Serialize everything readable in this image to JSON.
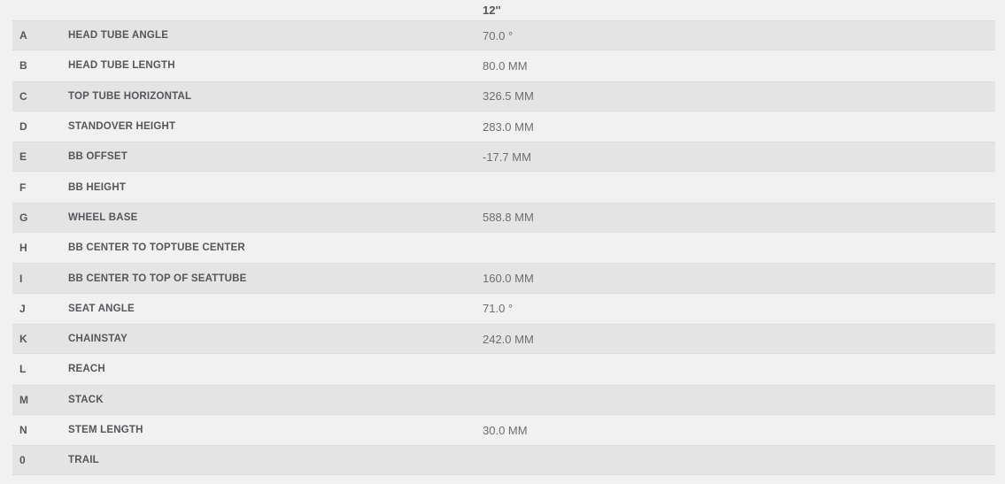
{
  "table": {
    "size_header": "12''",
    "rows": [
      {
        "letter": "A",
        "label": "HEAD TUBE ANGLE",
        "value": "70.0 °"
      },
      {
        "letter": "B",
        "label": "HEAD TUBE LENGTH",
        "value": "80.0 MM"
      },
      {
        "letter": "C",
        "label": "TOP TUBE HORIZONTAL",
        "value": "326.5 MM"
      },
      {
        "letter": "D",
        "label": "STANDOVER HEIGHT",
        "value": "283.0 MM"
      },
      {
        "letter": "E",
        "label": "BB OFFSET",
        "value": "-17.7 MM"
      },
      {
        "letter": "F",
        "label": "BB HEIGHT",
        "value": ""
      },
      {
        "letter": "G",
        "label": "WHEEL BASE",
        "value": "588.8 MM"
      },
      {
        "letter": "H",
        "label": "BB CENTER TO TOPTUBE CENTER",
        "value": ""
      },
      {
        "letter": "I",
        "label": "BB CENTER TO TOP OF SEATTUBE",
        "value": "160.0 MM"
      },
      {
        "letter": "J",
        "label": "SEAT ANGLE",
        "value": "71.0 °"
      },
      {
        "letter": "K",
        "label": "CHAINSTAY",
        "value": "242.0 MM"
      },
      {
        "letter": "L",
        "label": "REACH",
        "value": ""
      },
      {
        "letter": "M",
        "label": "STACK",
        "value": ""
      },
      {
        "letter": "N",
        "label": "STEM LENGTH",
        "value": "30.0 MM"
      },
      {
        "letter": "0",
        "label": "TRAIL",
        "value": ""
      }
    ],
    "colors": {
      "page_bg": "#f1f1f1",
      "row_shaded_bg": "#e4e4e4",
      "row_border": "#dcdcdc",
      "label_text": "#55565a",
      "value_text": "#6d6e70"
    }
  }
}
